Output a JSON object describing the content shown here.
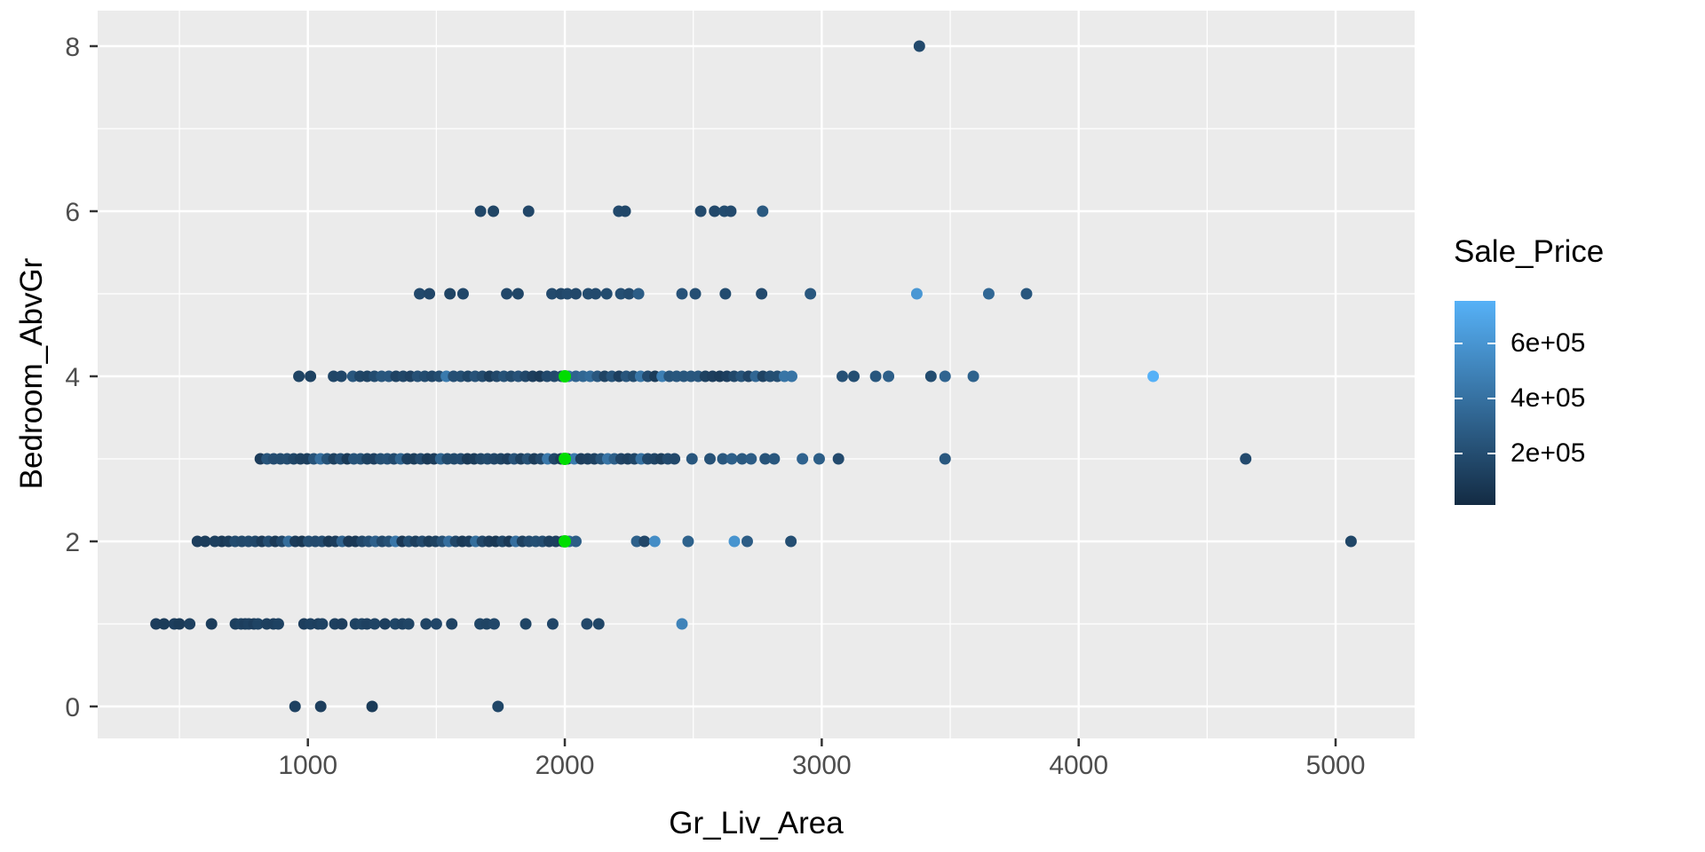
{
  "chart_data": {
    "type": "scatter",
    "title": "",
    "xlabel": "Gr_Liv_Area",
    "ylabel": "Bedroom_AbvGr",
    "x_ticks": [
      1000,
      2000,
      3000,
      4000,
      5000
    ],
    "x_minor_ticks": [
      500,
      1500,
      2500,
      3500,
      4500
    ],
    "y_ticks": [
      0,
      2,
      4,
      6,
      8
    ],
    "y_minor_ticks": [
      1,
      3,
      5,
      7
    ],
    "x_range": [
      180,
      5310
    ],
    "y_range": [
      -0.4,
      8.4
    ],
    "grid": true,
    "panel_color": "#ebebeb",
    "grid_color": "#ffffff",
    "tick_label_color": "#4d4d4d",
    "color_scale": {
      "label": "Sale_Price",
      "low_color": "#132B43",
      "high_color": "#56B1F7",
      "domain": [
        12789,
        755000
      ],
      "legend_ticks": [
        {
          "label": "6e+05",
          "value": 600000
        },
        {
          "label": "4e+05",
          "value": 400000
        },
        {
          "label": "2e+05",
          "value": 200000
        }
      ],
      "legend_position": "right"
    },
    "points": [
      [
        950,
        0,
        135000
      ],
      [
        1050,
        0,
        120000
      ],
      [
        1250,
        0,
        100000
      ],
      [
        1740,
        0,
        160000
      ],
      [
        409,
        1,
        115000
      ],
      [
        440,
        1,
        105000
      ],
      [
        480,
        1,
        120000
      ],
      [
        500,
        1,
        100000
      ],
      [
        540,
        1,
        130000
      ],
      [
        625,
        1,
        110000
      ],
      [
        718,
        1,
        125000
      ],
      [
        740,
        1,
        140000
      ],
      [
        756,
        1,
        120000
      ],
      [
        770,
        1,
        135000
      ],
      [
        790,
        1,
        115000
      ],
      [
        806,
        1,
        150000
      ],
      [
        840,
        1,
        130000
      ],
      [
        866,
        1,
        125000
      ],
      [
        885,
        1,
        140000
      ],
      [
        985,
        1,
        120000
      ],
      [
        1010,
        1,
        135000
      ],
      [
        1040,
        1,
        125000
      ],
      [
        1056,
        1,
        145000
      ],
      [
        1105,
        1,
        130000
      ],
      [
        1132,
        1,
        120000
      ],
      [
        1185,
        1,
        140000
      ],
      [
        1210,
        1,
        155000
      ],
      [
        1230,
        1,
        135000
      ],
      [
        1260,
        1,
        150000
      ],
      [
        1300,
        1,
        125000
      ],
      [
        1340,
        1,
        160000
      ],
      [
        1368,
        1,
        140000
      ],
      [
        1392,
        1,
        155000
      ],
      [
        1460,
        1,
        150000
      ],
      [
        1500,
        1,
        165000
      ],
      [
        1560,
        1,
        145000
      ],
      [
        1670,
        1,
        160000
      ],
      [
        1696,
        1,
        150000
      ],
      [
        1725,
        1,
        170000
      ],
      [
        1848,
        1,
        155000
      ],
      [
        1953,
        1,
        165000
      ],
      [
        2086,
        1,
        175000
      ],
      [
        2132,
        1,
        160000
      ],
      [
        2456,
        1,
        500000
      ],
      [
        570,
        2,
        120000
      ],
      [
        600,
        2,
        110000
      ],
      [
        638,
        2,
        125000
      ],
      [
        2280,
        2,
        305000
      ],
      [
        2310,
        2,
        165000
      ],
      [
        2350,
        2,
        555000
      ],
      [
        2480,
        2,
        315000
      ],
      [
        2660,
        2,
        592000
      ],
      [
        2710,
        2,
        285000
      ],
      [
        2880,
        2,
        205000
      ],
      [
        5060,
        2,
        160000
      ],
      [
        2495,
        3,
        250000
      ],
      [
        2565,
        3,
        225000
      ],
      [
        2615,
        3,
        255000
      ],
      [
        2650,
        3,
        300000
      ],
      [
        2690,
        3,
        265000
      ],
      [
        2725,
        3,
        285000
      ],
      [
        2780,
        3,
        235000
      ],
      [
        2815,
        3,
        255000
      ],
      [
        2925,
        3,
        320000
      ],
      [
        2990,
        3,
        295000
      ],
      [
        3065,
        3,
        185000
      ],
      [
        3480,
        3,
        255000
      ],
      [
        4650,
        3,
        185000
      ],
      [
        965,
        4,
        150000
      ],
      [
        1010,
        4,
        140000
      ],
      [
        1100,
        4,
        160000
      ],
      [
        1130,
        4,
        170000
      ],
      [
        3080,
        4,
        225000
      ],
      [
        3125,
        4,
        205000
      ],
      [
        3210,
        4,
        250000
      ],
      [
        3260,
        4,
        300000
      ],
      [
        3425,
        4,
        195000
      ],
      [
        3480,
        4,
        330000
      ],
      [
        3590,
        4,
        315000
      ],
      [
        4290,
        4,
        755000
      ],
      [
        1435,
        5,
        180000
      ],
      [
        1473,
        5,
        165000
      ],
      [
        1553,
        5,
        150000
      ],
      [
        1604,
        5,
        170000
      ],
      [
        1774,
        5,
        175000
      ],
      [
        1818,
        5,
        160000
      ],
      [
        1950,
        5,
        185000
      ],
      [
        1985,
        5,
        170000
      ],
      [
        2010,
        5,
        190000
      ],
      [
        2043,
        5,
        175000
      ],
      [
        2091,
        5,
        200000
      ],
      [
        2120,
        5,
        185000
      ],
      [
        2163,
        5,
        195000
      ],
      [
        2218,
        5,
        210000
      ],
      [
        2250,
        5,
        190000
      ],
      [
        2287,
        5,
        290000
      ],
      [
        2456,
        5,
        230000
      ],
      [
        2508,
        5,
        210000
      ],
      [
        2625,
        5,
        195000
      ],
      [
        2766,
        5,
        185000
      ],
      [
        2956,
        5,
        255000
      ],
      [
        3370,
        5,
        610000
      ],
      [
        3650,
        5,
        345000
      ],
      [
        3797,
        5,
        250000
      ],
      [
        1672,
        6,
        170000
      ],
      [
        1722,
        6,
        155000
      ],
      [
        1859,
        6,
        165000
      ],
      [
        2210,
        6,
        180000
      ],
      [
        2235,
        6,
        170000
      ],
      [
        2529,
        6,
        185000
      ],
      [
        2583,
        6,
        175000
      ],
      [
        2621,
        6,
        195000
      ],
      [
        2646,
        6,
        185000
      ],
      [
        2770,
        6,
        265000
      ],
      [
        3380,
        8,
        180000
      ]
    ],
    "dense_bands": [
      {
        "y": 2,
        "x_from": 665,
        "x_to": 2050,
        "step": 26,
        "price_base": 80000,
        "price_spread": 150000,
        "price_pop": 200000
      },
      {
        "y": 3,
        "x_from": 815,
        "x_to": 2450,
        "step": 26,
        "price_base": 85000,
        "price_spread": 160000,
        "price_pop": 210000
      },
      {
        "y": 4,
        "x_from": 1175,
        "x_to": 2900,
        "step": 28,
        "price_base": 95000,
        "price_spread": 170000,
        "price_pop": 220000
      }
    ],
    "highlight_points": {
      "color": "#00dd00",
      "points": [
        [
          2000,
          2
        ],
        [
          2000,
          3
        ],
        [
          2000,
          4
        ]
      ]
    }
  }
}
